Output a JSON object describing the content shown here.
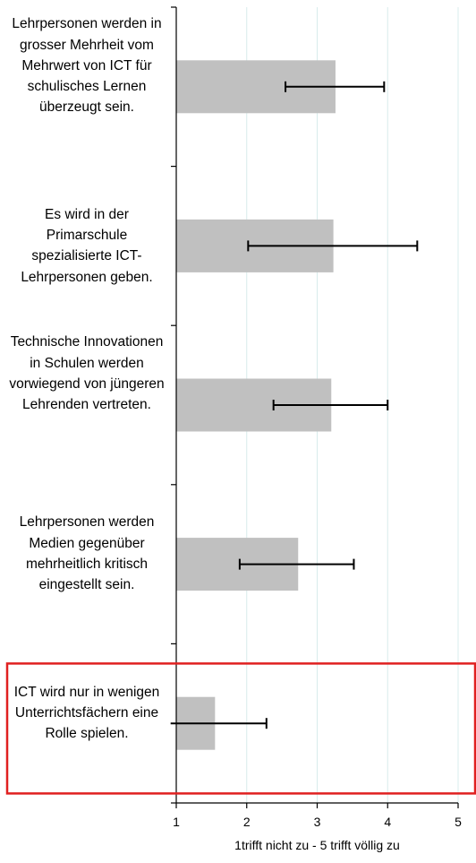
{
  "chart_data": {
    "type": "bar",
    "orientation": "horizontal",
    "categories": [
      "Lehrpersonen werden in grosser Mehrheit vom Mehrwert von ICT für schulisches Lernen überzeugt sein.",
      "Es wird in der Primarschule spezialisierte ICT-Lehrpersonen geben.",
      "Technische Innovationen in Schulen werden vorwiegend von jüngeren Lehrenden vertreten.",
      "Lehrpersonen werden Medien gegenüber mehrheitlich kritisch eingestellt sein.",
      "ICT wird nur in wenigen Unterrichtsfächern eine Rolle spielen."
    ],
    "values": [
      3.26,
      3.23,
      3.2,
      2.73,
      1.55
    ],
    "error_low": [
      2.55,
      2.02,
      2.38,
      1.9,
      0.92
    ],
    "error_high": [
      3.95,
      4.42,
      4.0,
      3.52,
      2.28
    ],
    "xlim": [
      1,
      5
    ],
    "xticks": [
      "1",
      "2",
      "3",
      "4",
      "5"
    ],
    "xlabel": "1trifft nicht zu - 5 trifft völlig zu",
    "grid": "vertical",
    "highlighted_category_index": 4,
    "colors": {
      "bar": "#c0c0c0",
      "errorbar": "#000000",
      "grid": "#d8ecec",
      "highlight_box": "#e02020"
    }
  }
}
